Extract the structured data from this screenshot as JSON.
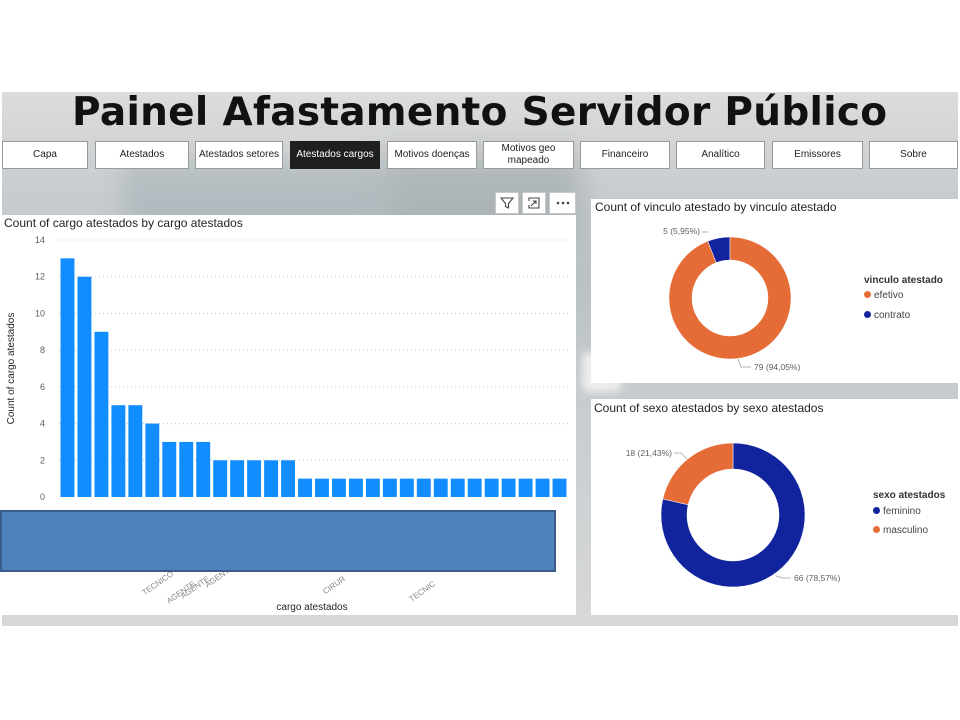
{
  "header": {
    "title": "Painel  Afastamento Servidor Público"
  },
  "nav": {
    "items": [
      {
        "label": "Capa",
        "active": false
      },
      {
        "label": "Atestados",
        "active": false
      },
      {
        "label": "Atestados setores",
        "active": false
      },
      {
        "label": "Atestados cargos",
        "active": true
      },
      {
        "label": "Motivos doenças",
        "active": false
      },
      {
        "label": "Motivos geo mapeado",
        "active": false
      },
      {
        "label": "Financeiro",
        "active": false
      },
      {
        "label": "Analítico",
        "active": false
      },
      {
        "label": "Emissores",
        "active": false
      },
      {
        "label": "Sobre",
        "active": false
      }
    ]
  },
  "toolbar": {
    "filter_icon": "filter-icon",
    "focus_icon": "focus-mode-icon",
    "more_icon": "more-options-icon"
  },
  "chart_data": [
    {
      "type": "bar",
      "title": "Count of cargo atestados by cargo atestados",
      "xlabel": "cargo atestados",
      "ylabel": "Count of cargo atestados",
      "ylim": [
        0,
        14
      ],
      "yticks": [
        0,
        2,
        4,
        6,
        8,
        10,
        12,
        14
      ],
      "grid": true,
      "color": "#118DFF",
      "values": [
        13,
        12,
        9,
        5,
        5,
        4,
        3,
        3,
        3,
        2,
        2,
        2,
        2,
        2,
        1,
        1,
        1,
        1,
        1,
        1,
        1,
        1,
        1,
        1,
        1,
        1,
        1,
        1,
        1,
        1
      ],
      "visible_tick_fragments": [
        "TECNICO",
        "AGENTE",
        "AGENTE",
        "AGENT",
        "CIRUR",
        "TECNIC"
      ]
    },
    {
      "type": "pie",
      "donut": true,
      "title": "Count of vinculo atestado by vinculo atestado",
      "legend_title": "vinculo atestado",
      "legend_position": "right",
      "slices": [
        {
          "label": "efetivo",
          "value": 79,
          "display": "79 (94,05%)",
          "color": "#E66C37"
        },
        {
          "label": "contrato",
          "value": 5,
          "display": "5 (5,95%)",
          "color": "#12239E"
        }
      ]
    },
    {
      "type": "pie",
      "donut": true,
      "title": "Count of sexo atestados by sexo atestados",
      "legend_title": "sexo atestados",
      "legend_position": "right",
      "slices": [
        {
          "label": "feminino",
          "value": 66,
          "display": "66 (78,57%)",
          "color": "#12239E"
        },
        {
          "label": "masculino",
          "value": 18,
          "display": "18 (21,43%)",
          "color": "#E66C37"
        }
      ]
    }
  ]
}
